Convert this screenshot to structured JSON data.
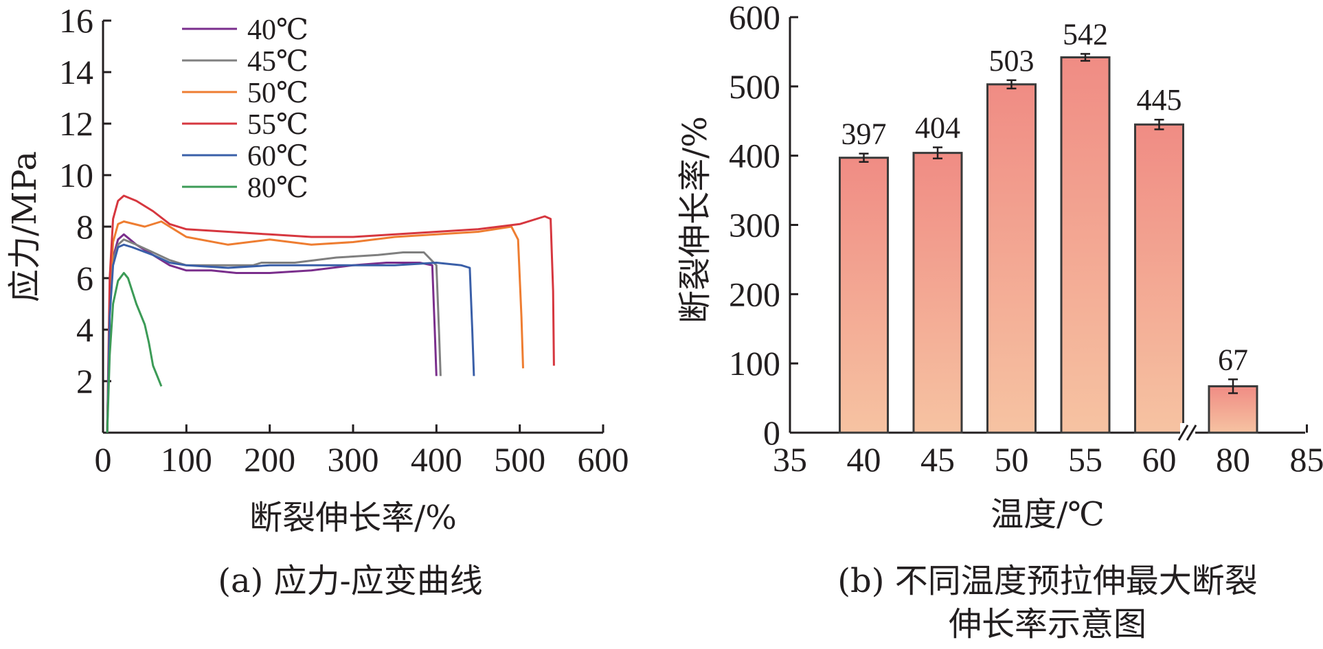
{
  "chart_data": [
    {
      "type": "line",
      "caption": "(a) 应力-应变曲线",
      "xlabel": "断裂伸长率/%",
      "ylabel": "应力/MPa",
      "xlim": [
        0,
        600
      ],
      "ylim": [
        0,
        16
      ],
      "xticks": [
        0,
        100,
        200,
        300,
        400,
        500,
        600
      ],
      "yticks": [
        2,
        4,
        6,
        8,
        10,
        12,
        14,
        16
      ],
      "legend_position": "top-center",
      "series": [
        {
          "name": "40℃",
          "color": "#7a2e8c",
          "x": [
            5,
            8,
            12,
            18,
            25,
            40,
            60,
            80,
            100,
            130,
            160,
            200,
            250,
            300,
            340,
            380,
            395,
            398,
            400
          ],
          "y": [
            0,
            4.8,
            6.8,
            7.5,
            7.7,
            7.3,
            6.9,
            6.5,
            6.3,
            6.3,
            6.2,
            6.2,
            6.3,
            6.5,
            6.6,
            6.6,
            6.5,
            4.0,
            2.2
          ]
        },
        {
          "name": "45℃",
          "color": "#7f7f7f",
          "x": [
            5,
            8,
            12,
            18,
            25,
            40,
            60,
            80,
            100,
            140,
            180,
            190,
            230,
            280,
            330,
            360,
            385,
            400,
            403,
            405
          ],
          "y": [
            0,
            4.8,
            6.7,
            7.3,
            7.5,
            7.3,
            7.0,
            6.7,
            6.5,
            6.5,
            6.5,
            6.6,
            6.6,
            6.8,
            6.9,
            7.0,
            7.0,
            6.5,
            4.0,
            2.2
          ]
        },
        {
          "name": "50℃",
          "color": "#ee7d31",
          "x": [
            5,
            8,
            12,
            18,
            25,
            50,
            70,
            100,
            150,
            200,
            250,
            300,
            350,
            400,
            450,
            490,
            498,
            502,
            504
          ],
          "y": [
            0,
            5.2,
            7.4,
            8.1,
            8.2,
            8.0,
            8.2,
            7.6,
            7.3,
            7.5,
            7.3,
            7.4,
            7.6,
            7.7,
            7.8,
            8.0,
            7.5,
            4.5,
            2.5
          ]
        },
        {
          "name": "55℃",
          "color": "#d6373f",
          "x": [
            5,
            8,
            12,
            18,
            25,
            40,
            60,
            80,
            100,
            150,
            200,
            250,
            300,
            350,
            400,
            450,
            500,
            530,
            537,
            540,
            541
          ],
          "y": [
            0,
            6.0,
            8.3,
            9.0,
            9.2,
            9.0,
            8.6,
            8.1,
            7.9,
            7.8,
            7.7,
            7.6,
            7.6,
            7.7,
            7.8,
            7.9,
            8.1,
            8.4,
            8.3,
            5.5,
            2.6
          ]
        },
        {
          "name": "60℃",
          "color": "#3a5fa8",
          "x": [
            5,
            8,
            12,
            18,
            25,
            35,
            60,
            80,
            100,
            150,
            200,
            250,
            300,
            350,
            400,
            430,
            440,
            443,
            445
          ],
          "y": [
            0,
            4.5,
            6.5,
            7.2,
            7.3,
            7.2,
            6.9,
            6.6,
            6.5,
            6.4,
            6.5,
            6.5,
            6.5,
            6.5,
            6.6,
            6.5,
            6.4,
            4.0,
            2.2
          ]
        },
        {
          "name": "80℃",
          "color": "#3c9b57",
          "x": [
            5,
            8,
            12,
            18,
            25,
            30,
            40,
            50,
            55,
            60,
            65,
            70
          ],
          "y": [
            0,
            3.0,
            5.0,
            5.9,
            6.2,
            6.0,
            5.0,
            4.2,
            3.5,
            2.6,
            2.2,
            1.8
          ]
        }
      ]
    },
    {
      "type": "bar",
      "caption": "(b) 不同温度预拉伸最大断裂伸长率示意图",
      "caption_line1": "(b) 不同温度预拉伸最大断裂",
      "caption_line2": "伸长率示意图",
      "xlabel": "温度/℃",
      "ylabel": "断裂伸长率/%",
      "ylim": [
        0,
        600
      ],
      "yticks": [
        0,
        100,
        200,
        300,
        400,
        500,
        600
      ],
      "xtick_labels": [
        "35",
        "40",
        "45",
        "50",
        "55",
        "60",
        "80",
        "85"
      ],
      "axis_break": "between 60 and 80",
      "categories": [
        "40",
        "45",
        "50",
        "55",
        "60",
        "80"
      ],
      "values": [
        397,
        404,
        503,
        542,
        445,
        67
      ],
      "labels": [
        "397",
        "404",
        "503",
        "542",
        "445",
        "67"
      ],
      "errors": [
        6,
        8,
        6,
        5,
        7,
        10
      ],
      "bar_gradient": [
        "#f08c84",
        "#f6c3a2"
      ]
    }
  ]
}
